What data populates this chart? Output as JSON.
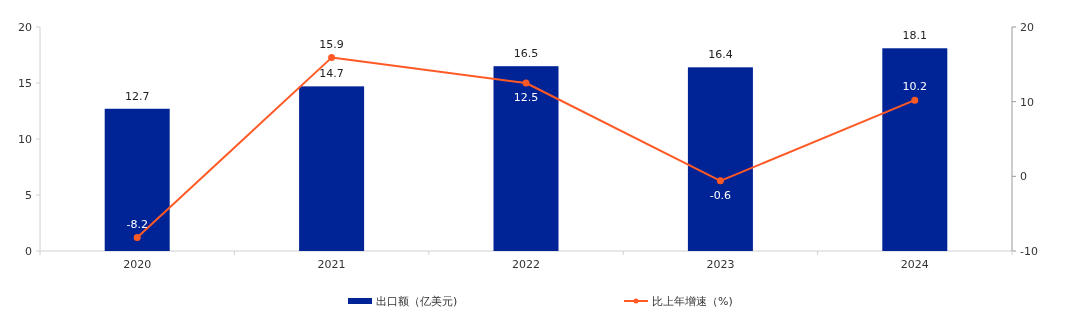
{
  "chart_data": {
    "type": "bar",
    "categories": [
      "2020",
      "2021",
      "2022",
      "2023",
      "2024"
    ],
    "series": [
      {
        "name": "出口额（亿美元)",
        "color": "#002395",
        "values": [
          12.7,
          14.7,
          16.5,
          16.4,
          18.1
        ]
      },
      {
        "name": "比上年增速（%)",
        "type": "line",
        "axis": "y2",
        "color": "#ff5a26",
        "marker": "circle",
        "values": [
          -8.2,
          15.9,
          12.5,
          -0.6,
          10.2
        ]
      }
    ],
    "ylim": [
      0,
      20
    ],
    "yticks": [
      0,
      5,
      10,
      15,
      20
    ],
    "y2lim": [
      -10,
      20
    ],
    "y2ticks": [
      -10,
      0,
      10,
      20
    ],
    "data_labels": true,
    "grid": false,
    "legend": "bottom"
  }
}
